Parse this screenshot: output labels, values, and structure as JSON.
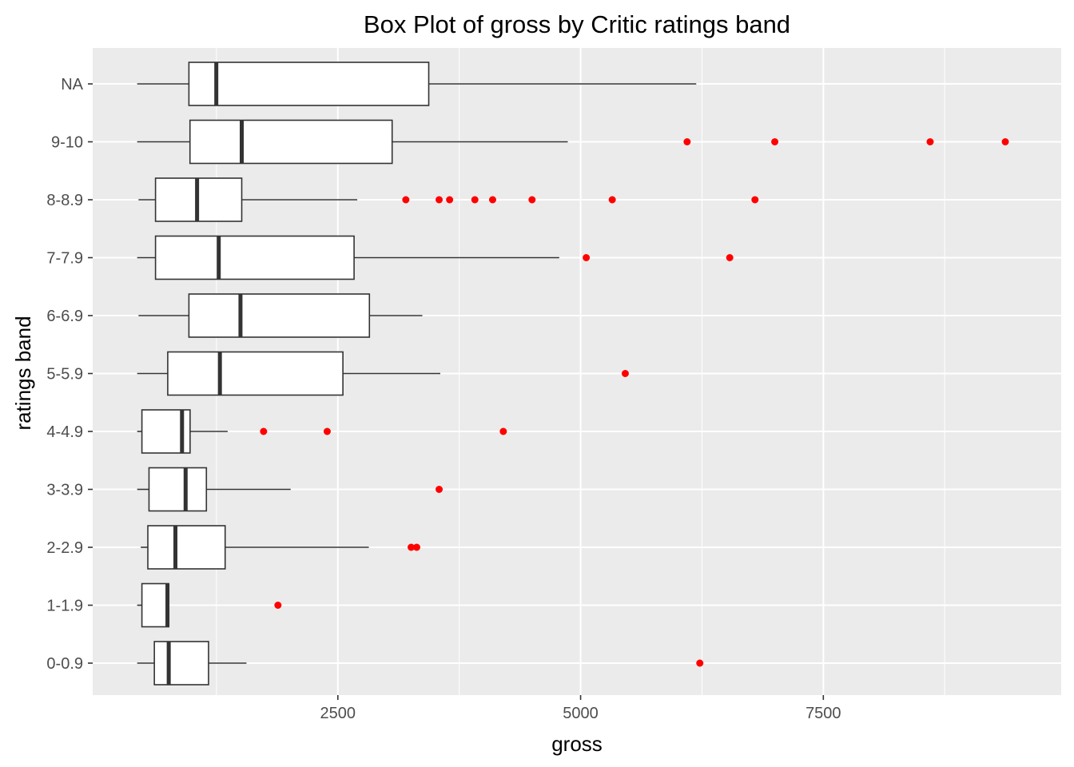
{
  "chart_data": {
    "type": "boxplot",
    "orientation": "horizontal",
    "title": "Box Plot of gross by Critic ratings band",
    "xlabel": "gross",
    "ylabel": "ratings band",
    "xlim": [
      -25,
      9950
    ],
    "x_ticks": [
      2500,
      5000,
      7500
    ],
    "x_tick_labels": [
      "2500",
      "5000",
      "7500"
    ],
    "grid": true,
    "colors": {
      "panel": "#ebebeb",
      "grid": "#ffffff",
      "box_fill": "#ffffff",
      "box_stroke": "#333333",
      "outlier": "#ff0000"
    },
    "categories": [
      "0-0.9",
      "1-1.9",
      "2-2.9",
      "3-3.9",
      "4-4.9",
      "5-5.9",
      "6-6.9",
      "7-7.9",
      "8-8.9",
      "9-10",
      "NA"
    ],
    "boxes": [
      {
        "category": "0-0.9",
        "whisker_low": 433,
        "q1": 610,
        "median": 758,
        "q3": 1168,
        "whisker_high": 1559,
        "outliers": [
          6228
        ]
      },
      {
        "category": "1-1.9",
        "whisker_low": 433,
        "q1": 482,
        "median": 745,
        "q3": 758,
        "whisker_high": 758,
        "outliers": [
          1883
        ]
      },
      {
        "category": "2-2.9",
        "whisker_low": 470,
        "q1": 543,
        "median": 827,
        "q3": 1339,
        "whisker_high": 2819,
        "outliers": [
          3255,
          3312
        ]
      },
      {
        "category": "3-3.9",
        "whisker_low": 433,
        "q1": 555,
        "median": 932,
        "q3": 1146,
        "whisker_high": 2014,
        "outliers": [
          3543
        ]
      },
      {
        "category": "4-4.9",
        "whisker_low": 433,
        "q1": 482,
        "median": 895,
        "q3": 978,
        "whisker_high": 1365,
        "outliers": [
          1735,
          2390,
          4204
        ]
      },
      {
        "category": "5-5.9",
        "whisker_low": 433,
        "q1": 748,
        "median": 1285,
        "q3": 2552,
        "whisker_high": 3555,
        "outliers": [
          5460
        ]
      },
      {
        "category": "6-6.9",
        "whisker_low": 447,
        "q1": 966,
        "median": 1497,
        "q3": 2825,
        "whisker_high": 3370,
        "outliers": []
      },
      {
        "category": "7-7.9",
        "whisker_low": 433,
        "q1": 622,
        "median": 1273,
        "q3": 2667,
        "whisker_high": 4780,
        "outliers": [
          5058,
          6536
        ]
      },
      {
        "category": "8-8.9",
        "whisker_low": 447,
        "q1": 622,
        "median": 1050,
        "q3": 1510,
        "whisker_high": 2700,
        "outliers": [
          3200,
          3543,
          3651,
          3911,
          4094,
          4500,
          5326,
          6796
        ]
      },
      {
        "category": "9-10",
        "whisker_low": 433,
        "q1": 977,
        "median": 1510,
        "q3": 3059,
        "whisker_high": 4868,
        "outliers": [
          6097,
          7000,
          8600,
          9374
        ]
      },
      {
        "category": "NA",
        "whisker_low": 433,
        "q1": 966,
        "median": 1248,
        "q3": 3436,
        "whisker_high": 6191,
        "outliers": []
      }
    ]
  }
}
